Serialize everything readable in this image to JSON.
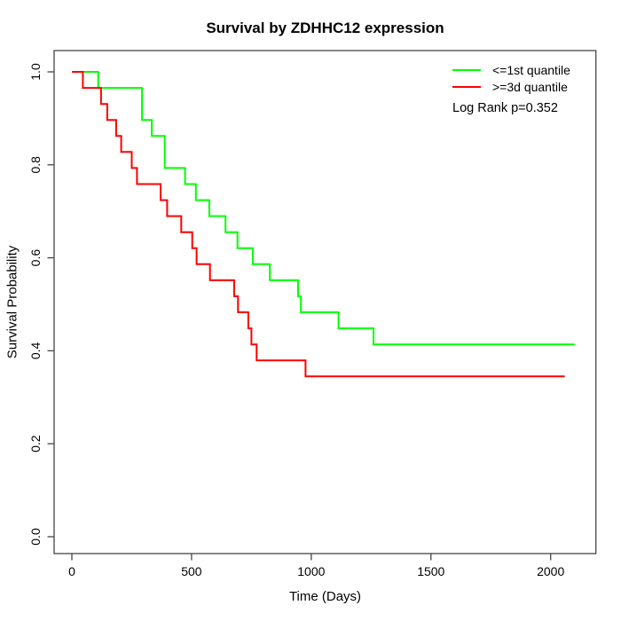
{
  "chart_data": {
    "type": "line",
    "subtype": "kaplan_meier_step",
    "title": "Survival by ZDHHC12 expression",
    "xlabel": "Time (Days)",
    "ylabel": "Survival Probability",
    "annotation": "Log Rank p=0.352",
    "legend_position": "top-right",
    "grid": false,
    "xlim": [
      0,
      2100
    ],
    "ylim": [
      0.0,
      1.0
    ],
    "x_tick_values": [
      0,
      500,
      1000,
      1500,
      2000
    ],
    "x_tick_labels": [
      "0",
      "500",
      "1000",
      "1500",
      "2000"
    ],
    "y_tick_values": [
      0.0,
      0.2,
      0.4,
      0.6,
      0.8,
      1.0
    ],
    "y_tick_labels": [
      "0.0",
      "0.2",
      "0.4",
      "0.6",
      "0.8",
      "1.0"
    ],
    "series": [
      {
        "name": "<=1st quantile",
        "color": "#00ff00",
        "points": [
          [
            0,
            1.0
          ],
          [
            110,
            0.9655
          ],
          [
            293,
            0.8966
          ],
          [
            334,
            0.8621
          ],
          [
            388,
            0.7931
          ],
          [
            473,
            0.7586
          ],
          [
            518,
            0.7241
          ],
          [
            574,
            0.6897
          ],
          [
            642,
            0.6552
          ],
          [
            692,
            0.6207
          ],
          [
            756,
            0.5862
          ],
          [
            827,
            0.5517
          ],
          [
            945,
            0.5172
          ],
          [
            957,
            0.4828
          ],
          [
            1114,
            0.4483
          ],
          [
            1260,
            0.4138
          ],
          [
            2100,
            0.4138
          ]
        ]
      },
      {
        "name": ">=3d quantile",
        "color": "#ff0000",
        "points": [
          [
            0,
            1.0
          ],
          [
            46,
            0.9655
          ],
          [
            122,
            0.931
          ],
          [
            148,
            0.8966
          ],
          [
            185,
            0.8621
          ],
          [
            206,
            0.8276
          ],
          [
            250,
            0.7931
          ],
          [
            272,
            0.7586
          ],
          [
            371,
            0.7241
          ],
          [
            398,
            0.6897
          ],
          [
            457,
            0.6552
          ],
          [
            503,
            0.6207
          ],
          [
            521,
            0.5862
          ],
          [
            577,
            0.5517
          ],
          [
            678,
            0.5172
          ],
          [
            694,
            0.4828
          ],
          [
            737,
            0.4483
          ],
          [
            750,
            0.4138
          ],
          [
            772,
            0.3793
          ],
          [
            976,
            0.3448
          ],
          [
            2059,
            0.3448
          ]
        ]
      }
    ]
  },
  "colors": {
    "axis": "#454545",
    "text": "#000000",
    "background": "#ffffff"
  }
}
